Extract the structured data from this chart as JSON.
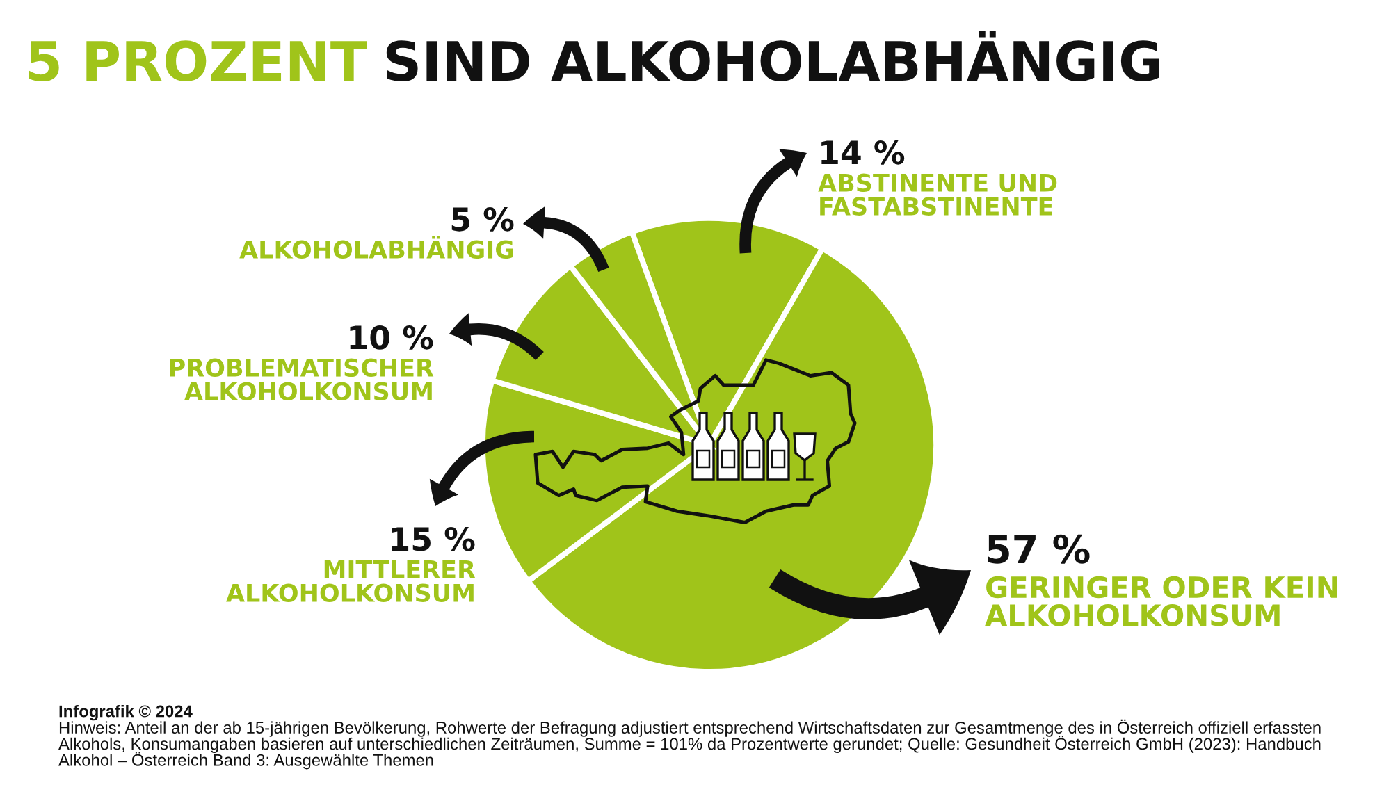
{
  "chart_data": {
    "type": "pie",
    "title": "5 PROZENT SIND ALKOHOLABHÄNGIG",
    "categories": [
      "ABSTINENTE UND\nFASTABSTINENTE",
      "GERINGER ODER KEIN\nALKOHOLKONSUM",
      "MITTLERER\nALKOHOLKONSUM",
      "PROBLEMATISCHER\nALKOHOLKONSUM",
      "ALKOHOLABHÄNGIG"
    ],
    "values": [
      14,
      57,
      15,
      10,
      5
    ],
    "colors": [
      "#a0c41a",
      "#a0c41a",
      "#a0c41a",
      "#a0c41a",
      "#a0c41a"
    ],
    "value_labels": [
      "14 %",
      "57 %",
      "15 %",
      "10 %",
      "5 %"
    ],
    "annotations": [
      "Infografik © 2024",
      "Hinweis: Anteil an der ab 15-jährigen Bevölkerung, Rohwerte der Befragung adjustiert entsprechend Wirtschaftsdaten zur Gesamtmenge des in Österreich offiziell erfassten\nAlkohols, Konsumangaben basieren auf unterschiedlichen Zeiträumen, Summe = 101% da Prozentwerte gerundet; Quelle: Gesundheit Österreich GmbH (2023): Handbuch\nAlkohol – Österreich Band 3: Ausgewählte Themen"
    ]
  }
}
